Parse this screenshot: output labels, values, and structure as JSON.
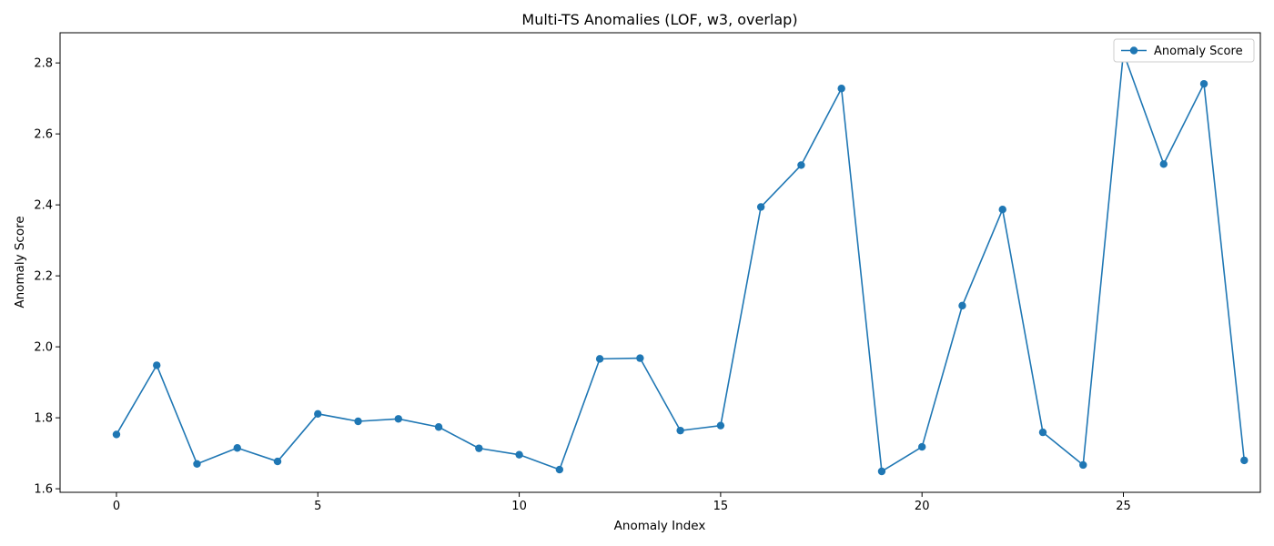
{
  "chart_data": {
    "type": "line",
    "title": "Multi-TS Anomalies (LOF, w3, overlap)",
    "xlabel": "Anomaly Index",
    "ylabel": "Anomaly Score",
    "xlim": [
      -1.4,
      28.4
    ],
    "ylim": [
      1.59,
      2.885
    ],
    "xticks": [
      0,
      5,
      10,
      15,
      20,
      25
    ],
    "yticks": [
      1.6,
      1.8,
      2.0,
      2.2,
      2.4,
      2.6,
      2.8
    ],
    "ytick_labels": [
      "1.6",
      "1.8",
      "2.0",
      "2.2",
      "2.4",
      "2.6",
      "2.8"
    ],
    "grid": false,
    "legend_position": "top-right",
    "series": [
      {
        "name": "Anomaly Score",
        "color": "#1f77b4",
        "marker": "circle",
        "x": [
          0,
          1,
          2,
          3,
          4,
          5,
          6,
          7,
          8,
          9,
          10,
          11,
          12,
          13,
          14,
          15,
          16,
          17,
          18,
          19,
          20,
          21,
          22,
          23,
          24,
          25,
          26,
          27,
          28
        ],
        "values": [
          1.753,
          1.948,
          1.67,
          1.715,
          1.677,
          1.811,
          1.79,
          1.797,
          1.774,
          1.714,
          1.696,
          1.654,
          1.966,
          1.968,
          1.764,
          1.778,
          2.394,
          2.512,
          2.728,
          1.649,
          1.718,
          2.116,
          2.387,
          1.759,
          1.667,
          2.829,
          2.515,
          2.741,
          1.68
        ]
      }
    ]
  }
}
